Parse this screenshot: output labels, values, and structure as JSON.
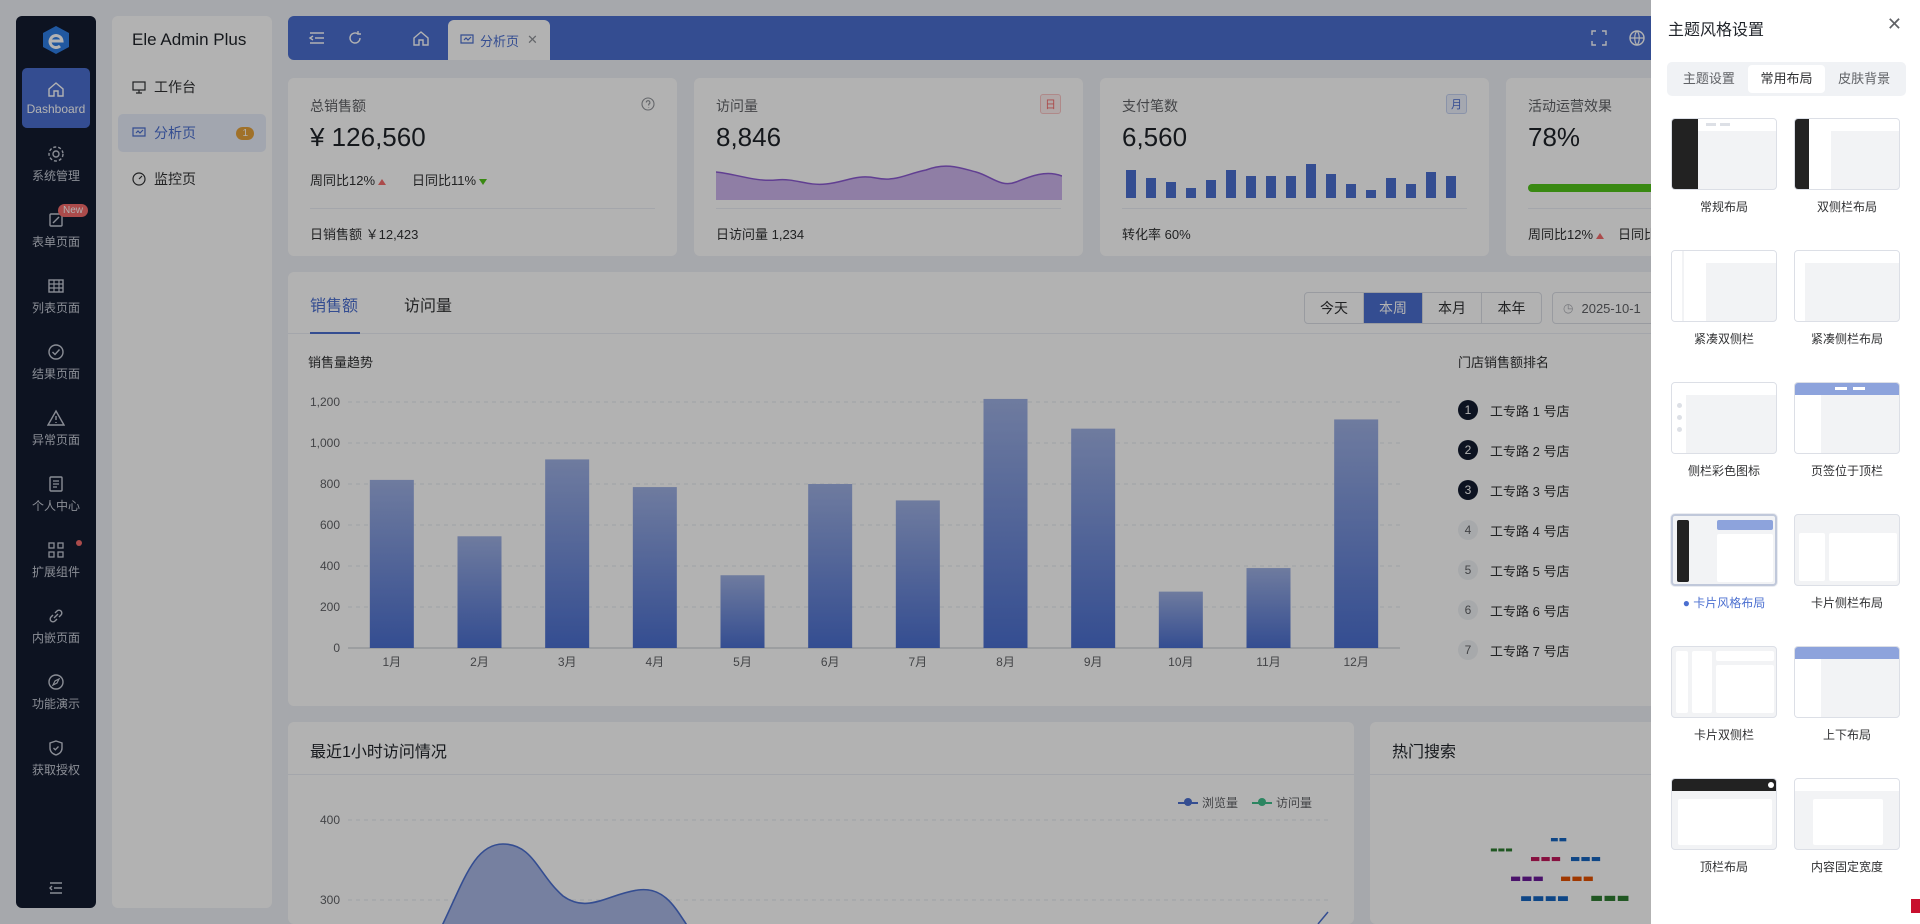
{
  "app": {
    "brand": "Ele Admin Plus"
  },
  "rail": {
    "items": [
      {
        "label": "Dashboard",
        "icon": "home-icon"
      },
      {
        "label": "系统管理",
        "icon": "gear-icon"
      },
      {
        "label": "表单页面",
        "icon": "form-icon",
        "badge": "New"
      },
      {
        "label": "列表页面",
        "icon": "table-icon"
      },
      {
        "label": "结果页面",
        "icon": "check-circle-icon"
      },
      {
        "label": "异常页面",
        "icon": "warning-icon"
      },
      {
        "label": "个人中心",
        "icon": "profile-icon"
      },
      {
        "label": "扩展组件",
        "icon": "apps-icon"
      },
      {
        "label": "内嵌页面",
        "icon": "link-icon"
      },
      {
        "label": "功能演示",
        "icon": "compass-icon"
      },
      {
        "label": "获取授权",
        "icon": "shield-icon"
      }
    ]
  },
  "subnav": {
    "items": [
      {
        "label": "工作台",
        "icon": "monitor-icon"
      },
      {
        "label": "分析页",
        "icon": "chart-icon",
        "badge": "1"
      },
      {
        "label": "监控页",
        "icon": "gauge-icon"
      }
    ]
  },
  "topbar": {
    "tab_label": "分析页"
  },
  "stats": {
    "sales": {
      "label": "总销售额",
      "value": "¥ 126,560",
      "week": "周同比12%",
      "day": "日同比11%",
      "foot": "日销售额 ￥12,423"
    },
    "visits": {
      "label": "访问量",
      "tag": "日",
      "value": "8,846",
      "foot": "日访问量 1,234"
    },
    "payments": {
      "label": "支付笔数",
      "tag": "月",
      "value": "6,560",
      "foot": "转化率 60%"
    },
    "ops": {
      "label": "活动运营效果",
      "value": "78%",
      "week": "周同比12%",
      "day": "日同比",
      "progress": 0.78
    }
  },
  "main": {
    "tabs": [
      "销售额",
      "访问量"
    ],
    "ranges": [
      "今天",
      "本周",
      "本月",
      "本年"
    ],
    "selected_range": "本周",
    "date": "2025-10-1",
    "chart_title": "销售量趋势",
    "rank_title": "门店销售额排名",
    "ranking": [
      "工专路 1 号店",
      "工专路 2 号店",
      "工专路 3 号店",
      "工专路 4 号店",
      "工专路 5 号店",
      "工专路 6 号店",
      "工专路 7 号店"
    ]
  },
  "chart_data": [
    {
      "type": "bar",
      "title": "销售量趋势",
      "categories": [
        "1月",
        "2月",
        "3月",
        "4月",
        "5月",
        "6月",
        "7月",
        "8月",
        "9月",
        "10月",
        "11月",
        "12月"
      ],
      "values": [
        820,
        545,
        920,
        785,
        355,
        800,
        720,
        1215,
        1070,
        275,
        390,
        1115
      ],
      "ylim": [
        0,
        1200
      ],
      "yticks": [
        "0",
        "200",
        "400",
        "600",
        "800",
        "1,000",
        "1,200"
      ],
      "grid": true
    },
    {
      "type": "area",
      "title": "最近1小时访问情况",
      "series": [
        {
          "name": "浏览量"
        },
        {
          "name": "访问量"
        }
      ],
      "yticks": [
        "400",
        "300"
      ],
      "legend": "top-right"
    }
  ],
  "bottom": {
    "left_title": "最近1小时访问情况",
    "right_title": "热门搜索",
    "legend": [
      "浏览量",
      "访问量"
    ]
  },
  "drawer": {
    "title": "主题风格设置",
    "tabs": [
      "主题设置",
      "常用布局",
      "皮肤背景"
    ],
    "active_tab": "常用布局",
    "layouts": [
      "常规布局",
      "双侧栏布局",
      "紧凑双侧栏",
      "紧凑侧栏布局",
      "侧栏彩色图标",
      "页签位于顶栏",
      "卡片风格布局",
      "卡片侧栏布局",
      "卡片双侧栏",
      "上下布局",
      "顶栏布局",
      "内容固定宽度"
    ],
    "selected_layout": "卡片风格布局"
  },
  "colors": {
    "accent": "#4b6fd0",
    "rail": "#131c30",
    "danger": "#f56c6c",
    "success": "#52c41a"
  }
}
